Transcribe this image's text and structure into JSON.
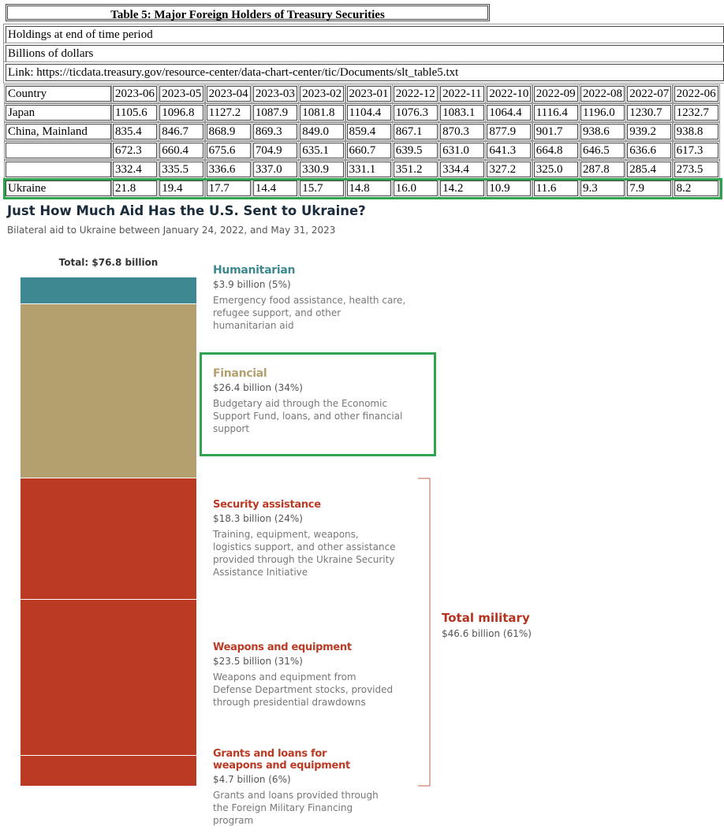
{
  "table": {
    "title": "Table 5: Major Foreign Holders of Treasury Securities",
    "notes": [
      "Holdings at end of time period",
      "Billions of dollars",
      "Link: https://ticdata.treasury.gov/resource-center/data-chart-center/tic/Documents/slt_table5.txt"
    ],
    "header": [
      "Country",
      "2023-06",
      "2023-05",
      "2023-04",
      "2023-03",
      "2023-02",
      "2023-01",
      "2022-12",
      "2022-11",
      "2022-10",
      "2022-09",
      "2022-08",
      "2022-07",
      "2022-06"
    ],
    "rows": [
      [
        "Japan",
        "1105.6",
        "1096.8",
        "1127.2",
        "1087.9",
        "1081.8",
        "1104.4",
        "1076.3",
        "1083.1",
        "1064.4",
        "1116.4",
        "1196.0",
        "1230.7",
        "1232.7"
      ],
      [
        "China, Mainland",
        "835.4",
        "846.7",
        "868.9",
        "869.3",
        "849.0",
        "859.4",
        "867.1",
        "870.3",
        "877.9",
        "901.7",
        "938.6",
        "939.2",
        "938.8"
      ],
      [
        null,
        "672.3",
        "660.4",
        "675.6",
        "704.9",
        "635.1",
        "660.7",
        "639.5",
        "631.0",
        "641.3",
        "664.8",
        "646.5",
        "636.6",
        "617.3"
      ],
      [
        null,
        "332.4",
        "335.5",
        "336.6",
        "337.0",
        "330.9",
        "331.1",
        "351.2",
        "334.4",
        "327.2",
        "325.0",
        "287.8",
        "285.4",
        "273.5"
      ],
      [
        "Ukraine",
        "21.8",
        "19.4",
        "17.7",
        "14.4",
        "15.7",
        "14.8",
        "16.0",
        "14.2",
        "10.9",
        "11.6",
        "9.3",
        "7.9",
        "8.2"
      ]
    ]
  },
  "infographic": {
    "title": "Just How Much Aid Has the U.S. Sent to Ukraine?",
    "subtitle": "Bilateral aid to Ukraine between January 24, 2022, and May 31, 2023",
    "total_label": "Total: $76.8 billion",
    "segments": [
      {
        "name": "Humanitarian",
        "value": 3.9,
        "value_label": "$3.9 billion (5%)",
        "description": "Emergency food assistance, health care, refugee support, and other humanitarian aid",
        "color": "#3d8891"
      },
      {
        "name": "Financial",
        "value": 26.4,
        "value_label": "$26.4 billion (34%)",
        "description": "Budgetary aid through the Economic Support Fund, loans, and other financial support",
        "color": "#b3a06e"
      },
      {
        "name": "Security assistance",
        "value": 18.3,
        "value_label": "$18.3 billion (24%)",
        "description": "Training, equipment, weapons, logistics support, and other assistance provided through the Ukraine Security Assistance Initiative",
        "color": "#bb3a24"
      },
      {
        "name": "Weapons and equipment",
        "value": 23.5,
        "value_label": "$23.5 billion (31%)",
        "description": "Weapons and equipment from Defense Department stocks, provided through presidential drawdowns",
        "color": "#bb3a24"
      },
      {
        "name": "Grants and loans for weapons and equipment",
        "value": 4.7,
        "value_label": "$4.7 billion (6%)",
        "description": "Grants and loans provided through the Foreign Military Financing program",
        "color": "#bb3a24"
      }
    ],
    "military": {
      "name": "Total military",
      "value_label": "$46.6 billion (61%)",
      "color": "#b5341f"
    }
  }
}
